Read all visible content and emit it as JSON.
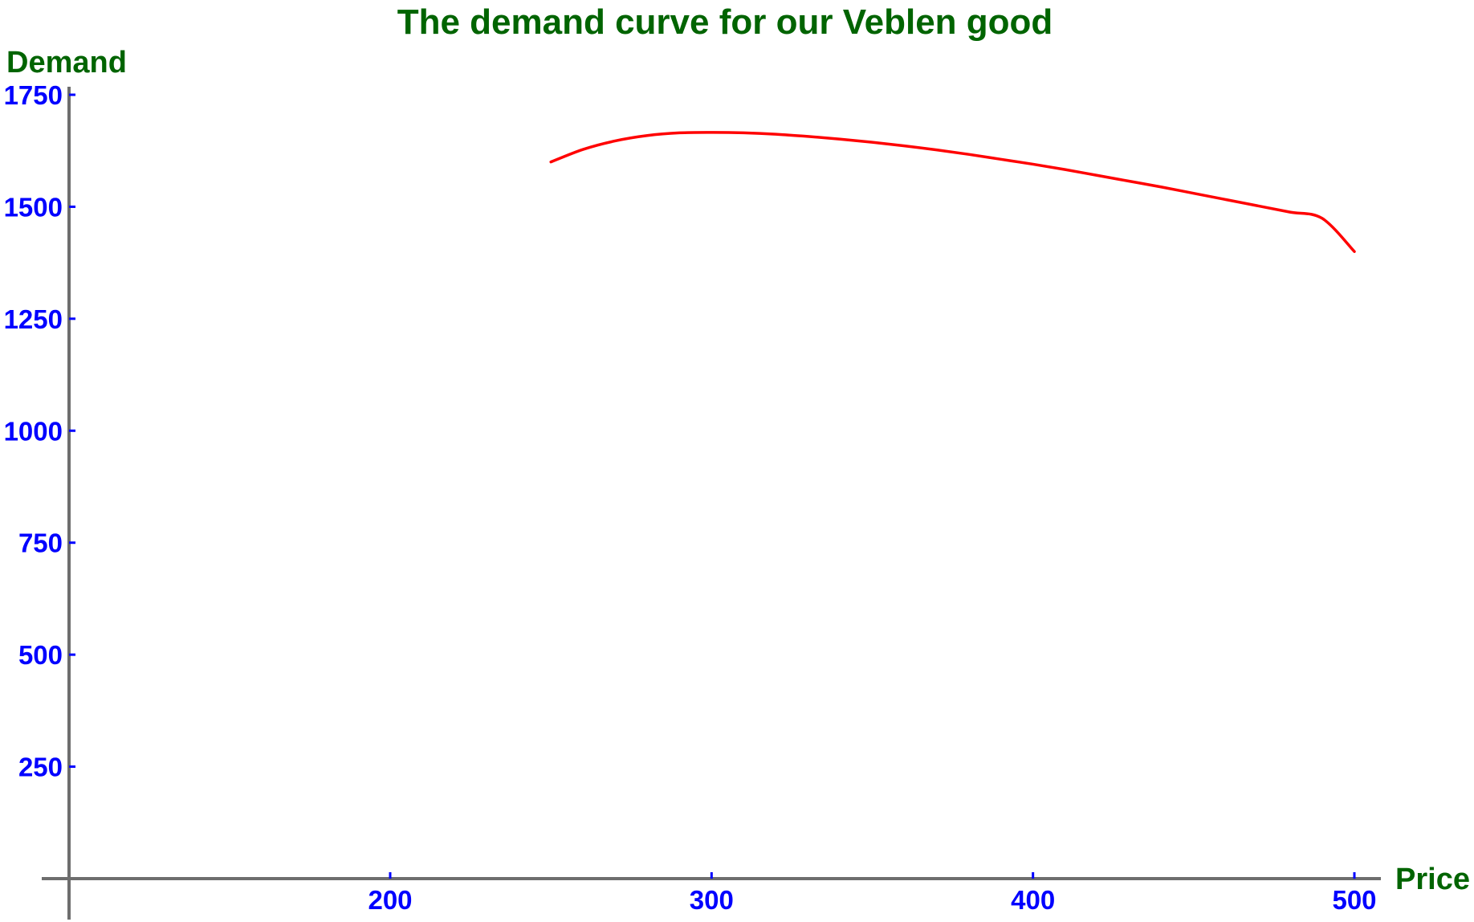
{
  "chart_data": {
    "type": "line",
    "title": "The demand curve for our Veblen good",
    "xlabel": "Price",
    "ylabel": "Demand",
    "xlim": [
      100,
      510
    ],
    "ylim": [
      0,
      1750
    ],
    "x_ticks": [
      200,
      300,
      400,
      500
    ],
    "y_ticks": [
      250,
      500,
      750,
      1000,
      1250,
      1500,
      1750
    ],
    "x_tick_labels": [
      "200",
      "300",
      "400",
      "500"
    ],
    "y_tick_labels": [
      "250",
      "500",
      "750",
      "1000",
      "1250",
      "1500",
      "1750"
    ],
    "grid": false,
    "legend": "none",
    "series": [
      {
        "color": "#ff0000",
        "points": [
          [
            250,
            1600
          ],
          [
            260,
            1628
          ],
          [
            270,
            1647
          ],
          [
            280,
            1659
          ],
          [
            290,
            1665
          ],
          [
            300,
            1666
          ],
          [
            310,
            1665
          ],
          [
            320,
            1662
          ],
          [
            330,
            1657
          ],
          [
            340,
            1651
          ],
          [
            350,
            1644
          ],
          [
            360,
            1636
          ],
          [
            370,
            1627
          ],
          [
            380,
            1617
          ],
          [
            390,
            1606
          ],
          [
            400,
            1595
          ],
          [
            410,
            1583
          ],
          [
            420,
            1570
          ],
          [
            430,
            1557
          ],
          [
            440,
            1544
          ],
          [
            450,
            1530
          ],
          [
            460,
            1516
          ],
          [
            470,
            1502
          ],
          [
            480,
            1488
          ],
          [
            490,
            1474
          ],
          [
            500,
            1400
          ]
        ]
      }
    ]
  },
  "colors": {
    "title": "#006400",
    "axis_label": "#006400",
    "tick_label": "#0000ff",
    "axis": "#6e6e6e",
    "curve": "#ff0000"
  }
}
